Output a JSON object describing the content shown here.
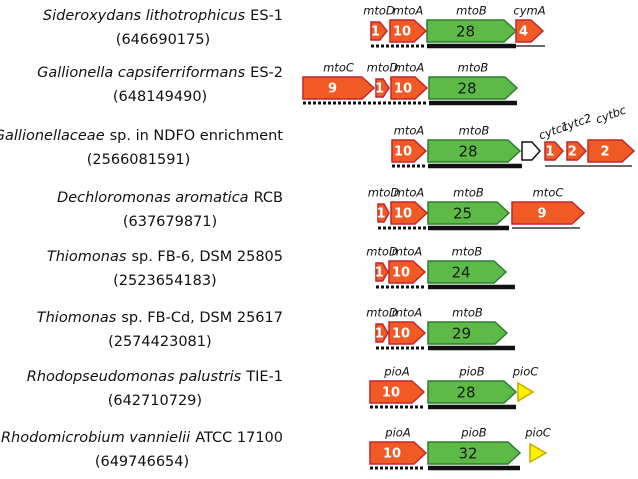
{
  "rows": [
    {
      "species": "Sideroxydans lithotrophicus",
      "strain": "ES-1",
      "id": "(646690175)",
      "genes": [
        {
          "label": "mtoD",
          "number": "1"
        },
        {
          "label": "mtoA",
          "number": "10"
        },
        {
          "label": "mtoB",
          "number": "28"
        },
        {
          "label": "cymA",
          "number": "4"
        }
      ]
    },
    {
      "species": "Gallionella capsiferriformans",
      "strain": "ES-2",
      "id": "(648149490)",
      "genes": [
        {
          "label": "mtoC",
          "number": "9"
        },
        {
          "label": "mtoD",
          "number": "1"
        },
        {
          "label": "mtoA",
          "number": "10"
        },
        {
          "label": "mtoB",
          "number": "28"
        }
      ]
    },
    {
      "species": "Gallionellaceae",
      "strain": "sp. in NDFO enrichment",
      "id": "(2566081591)",
      "genes": [
        {
          "label": "mtoA",
          "number": "10"
        },
        {
          "label": "mtoB",
          "number": "28"
        },
        {
          "label": "cytc1",
          "number": "1"
        },
        {
          "label": "cytc2",
          "number": "2"
        },
        {
          "label": "cytbc",
          "number": "2"
        }
      ]
    },
    {
      "species": "Dechloromonas aromatica",
      "strain": "RCB",
      "id": "(637679871)",
      "genes": [
        {
          "label": "mtoD",
          "number": "1"
        },
        {
          "label": "mtoA",
          "number": "10"
        },
        {
          "label": "mtoB",
          "number": "25"
        },
        {
          "label": "mtoC",
          "number": "9"
        }
      ]
    },
    {
      "species": "Thiomonas",
      "strain": "sp. FB-6, DSM 25805",
      "id": "(2523654183)",
      "genes": [
        {
          "label": "mtoD",
          "number": "1"
        },
        {
          "label": "mtoA",
          "number": "10"
        },
        {
          "label": "mtoB",
          "number": "24"
        }
      ]
    },
    {
      "species": "Thiomonas",
      "strain": "sp. FB-Cd, DSM 25617",
      "id": "(2574423081)",
      "genes": [
        {
          "label": "mtoD",
          "number": "1"
        },
        {
          "label": "mtoA",
          "number": "10"
        },
        {
          "label": "mtoB",
          "number": "29"
        }
      ]
    },
    {
      "species": "Rhodopseudomonas palustris",
      "strain": "TIE-1",
      "id": "(642710729)",
      "genes": [
        {
          "label": "pioA",
          "number": "10"
        },
        {
          "label": "pioB",
          "number": "28"
        },
        {
          "label": "pioC"
        }
      ]
    },
    {
      "species": "Rhodomicrobium vannielii",
      "strain": "ATCC 17100",
      "id": "(649746654)",
      "genes": [
        {
          "label": "pioA",
          "number": "10"
        },
        {
          "label": "pioB",
          "number": "32"
        },
        {
          "label": "pioC"
        }
      ]
    }
  ]
}
